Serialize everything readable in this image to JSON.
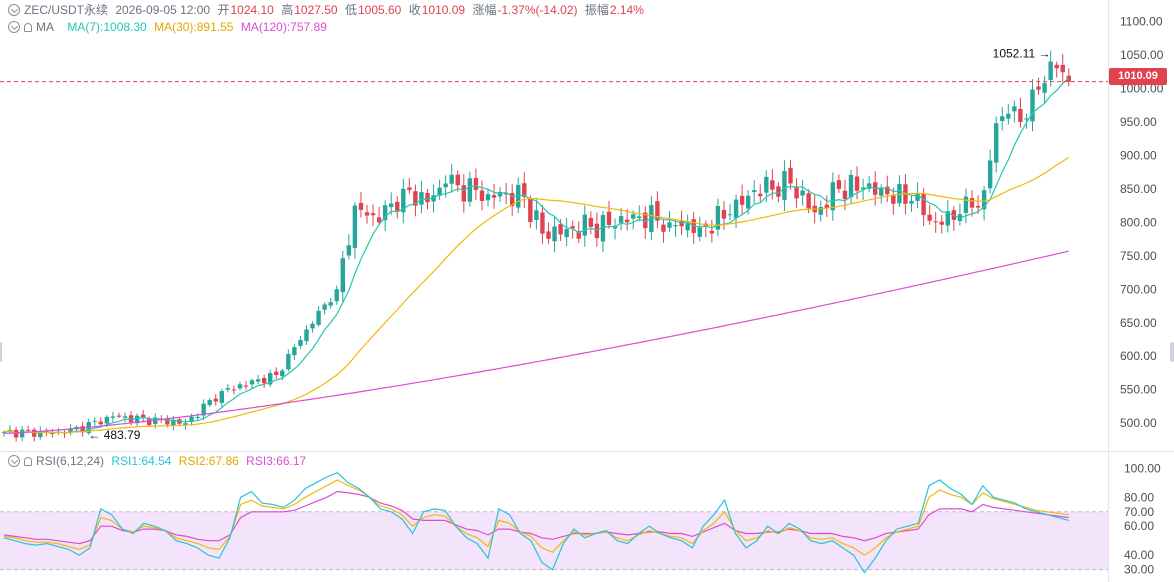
{
  "header": {
    "symbol": "ZEC/USDT永续",
    "datetime": "2026-09-05 12:00",
    "open_label": "开",
    "open": "1024.10",
    "high_label": "高",
    "high": "1027.50",
    "low_label": "低",
    "low": "1005.60",
    "close_label": "收",
    "close": "1010.09",
    "change_label": "涨幅",
    "change": "-1.37%(-14.02)",
    "amp_label": "振幅",
    "amp": "2.14%"
  },
  "ma_legend": {
    "label": "MA",
    "ma7": "MA(7):1008.30",
    "ma30": "MA(30):891.55",
    "ma120": "MA(120):757.89"
  },
  "rsi_legend": {
    "label": "RSI(6,12,24)",
    "rsi1": "RSI1:64.54",
    "rsi2": "RSI2:67.86",
    "rsi3": "RSI3:66.17"
  },
  "price_badge": "1010.09",
  "colors": {
    "up": "#26a69a",
    "down": "#e0424f",
    "ma7": "#26c6b0",
    "ma30": "#f0b90b",
    "ma120": "#d94fd0",
    "rsi1": "#29c3d6",
    "rsi2": "#f0b90b",
    "rsi3": "#d94fd0",
    "rsi_band": "#f3e3fb"
  },
  "chart_data": {
    "type": "candlestick",
    "price_axis": {
      "ticks": [
        1100,
        1050,
        1000,
        950,
        900,
        850,
        800,
        750,
        700,
        650,
        600,
        550,
        500
      ],
      "tick_labels": [
        "1100.00",
        "1050.00",
        "1000.00",
        "950.00",
        "900.00",
        "850.00",
        "800.00",
        "750.00",
        "700.00",
        "650.00",
        "600.00",
        "550.00",
        "500.00"
      ],
      "range": [
        460,
        1120
      ]
    },
    "rsi_axis": {
      "ticks": [
        100,
        80,
        70,
        60,
        40,
        30
      ],
      "tick_labels": [
        "100.00",
        "80.00",
        "70.00",
        "60.00",
        "40.00",
        "30.00"
      ],
      "range": [
        27,
        103
      ],
      "band": [
        30,
        70
      ]
    },
    "last_price": 1010.09,
    "max_annotation": {
      "value": 1052.11,
      "label": "1052.11"
    },
    "min_annotation": {
      "value": 483.79,
      "label": "483.79"
    },
    "key_closes": [
      {
        "i": 0,
        "c": 487
      },
      {
        "i": 10,
        "c": 485
      },
      {
        "i": 18,
        "c": 510
      },
      {
        "i": 30,
        "c": 500
      },
      {
        "i": 36,
        "c": 548
      },
      {
        "i": 45,
        "c": 572
      },
      {
        "i": 50,
        "c": 640
      },
      {
        "i": 55,
        "c": 700
      },
      {
        "i": 58,
        "c": 825
      },
      {
        "i": 62,
        "c": 800
      },
      {
        "i": 66,
        "c": 850
      },
      {
        "i": 70,
        "c": 830
      },
      {
        "i": 73,
        "c": 858
      },
      {
        "i": 80,
        "c": 842
      },
      {
        "i": 86,
        "c": 838
      },
      {
        "i": 89,
        "c": 783
      },
      {
        "i": 93,
        "c": 790
      },
      {
        "i": 100,
        "c": 796
      },
      {
        "i": 104,
        "c": 812
      },
      {
        "i": 110,
        "c": 800
      },
      {
        "i": 115,
        "c": 792
      },
      {
        "i": 120,
        "c": 812
      },
      {
        "i": 124,
        "c": 848
      },
      {
        "i": 130,
        "c": 858
      },
      {
        "i": 134,
        "c": 815
      },
      {
        "i": 138,
        "c": 850
      },
      {
        "i": 142,
        "c": 852
      },
      {
        "i": 146,
        "c": 842
      },
      {
        "i": 150,
        "c": 832
      },
      {
        "i": 154,
        "c": 800
      },
      {
        "i": 158,
        "c": 812
      },
      {
        "i": 160,
        "c": 822
      },
      {
        "i": 162,
        "c": 848
      },
      {
        "i": 164,
        "c": 948
      },
      {
        "i": 166,
        "c": 962
      },
      {
        "i": 169,
        "c": 955
      },
      {
        "i": 171,
        "c": 998
      },
      {
        "i": 173,
        "c": 1040
      },
      {
        "i": 174,
        "c": 1030
      },
      {
        "i": 175,
        "c": 1024
      },
      {
        "i": 176,
        "c": 1010
      }
    ],
    "rsi1": [
      52,
      50,
      48,
      47,
      48,
      46,
      44,
      40,
      45,
      72,
      68,
      58,
      55,
      62,
      60,
      57,
      50,
      48,
      45,
      40,
      38,
      52,
      80,
      84,
      76,
      75,
      73,
      78,
      86,
      90,
      94,
      97,
      90,
      86,
      80,
      72,
      70,
      65,
      55,
      70,
      72,
      71,
      60,
      52,
      48,
      38,
      72,
      68,
      55,
      50,
      35,
      30,
      48,
      58,
      52,
      55,
      57,
      50,
      48,
      55,
      60,
      55,
      52,
      50,
      45,
      60,
      68,
      78,
      55,
      45,
      50,
      60,
      55,
      62,
      58,
      50,
      48,
      50,
      45,
      40,
      28,
      38,
      50,
      58,
      60,
      62,
      88,
      92,
      86,
      82,
      75,
      88,
      80,
      78,
      76,
      72,
      70,
      68,
      66,
      64
    ],
    "rsi2": [
      53,
      52,
      50,
      49,
      49,
      48,
      46,
      44,
      47,
      66,
      64,
      58,
      56,
      60,
      59,
      57,
      52,
      50,
      48,
      45,
      44,
      53,
      75,
      78,
      74,
      73,
      72,
      75,
      80,
      84,
      88,
      92,
      88,
      85,
      80,
      74,
      72,
      68,
      60,
      66,
      68,
      67,
      60,
      55,
      52,
      46,
      64,
      62,
      56,
      53,
      45,
      42,
      50,
      56,
      54,
      55,
      56,
      52,
      50,
      54,
      57,
      55,
      53,
      52,
      48,
      57,
      62,
      70,
      57,
      50,
      52,
      57,
      55,
      59,
      57,
      52,
      51,
      52,
      48,
      45,
      40,
      45,
      52,
      56,
      58,
      60,
      80,
      85,
      82,
      80,
      75,
      83,
      79,
      77,
      75,
      73,
      71,
      70,
      69,
      68
    ],
    "rsi3": [
      54,
      53,
      52,
      51,
      51,
      50,
      49,
      48,
      50,
      60,
      60,
      57,
      56,
      58,
      58,
      57,
      54,
      53,
      51,
      50,
      50,
      54,
      66,
      70,
      70,
      70,
      70,
      71,
      74,
      77,
      80,
      84,
      83,
      82,
      80,
      76,
      74,
      71,
      65,
      64,
      64,
      64,
      61,
      58,
      57,
      54,
      58,
      58,
      56,
      55,
      52,
      51,
      53,
      55,
      55,
      55,
      56,
      55,
      54,
      55,
      56,
      56,
      55,
      55,
      53,
      56,
      59,
      62,
      57,
      55,
      55,
      56,
      56,
      58,
      57,
      55,
      55,
      55,
      53,
      52,
      50,
      52,
      55,
      56,
      57,
      58,
      68,
      72,
      72,
      72,
      70,
      75,
      73,
      72,
      71,
      70,
      69,
      68,
      67,
      66
    ]
  }
}
